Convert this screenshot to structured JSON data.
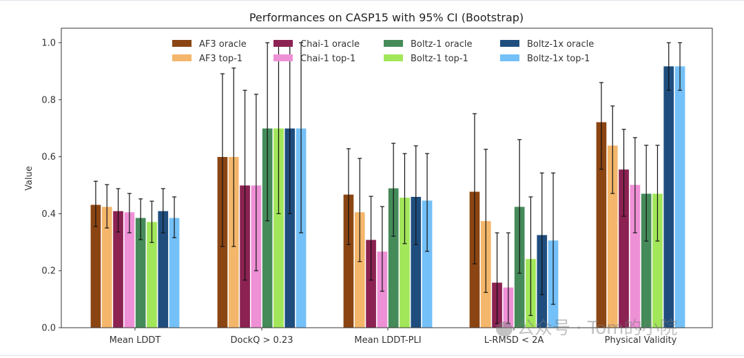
{
  "watermark": "公众号 · Tom的小院",
  "chart_data": {
    "type": "bar",
    "title": "Performances on CASP15 with 95% CI (Bootstrap)",
    "xlabel": "",
    "ylabel": "Value",
    "ylim": [
      0,
      1.05
    ],
    "yticks": [
      "0.0",
      "0.2",
      "0.4",
      "0.6",
      "0.8",
      "1.0"
    ],
    "grid": false,
    "legend_position": "top-center",
    "categories": [
      "Mean LDDT",
      "DockQ > 0.23",
      "Mean LDDT-PLI",
      "L-RMSD < 2A",
      "Physical Validity"
    ],
    "series": [
      {
        "name": "AF3 oracle",
        "color": "#8b4513",
        "values": [
          0.432,
          0.6,
          0.468,
          0.478,
          0.722
        ],
        "ci_low": [
          0.355,
          0.285,
          0.292,
          0.224,
          0.556
        ],
        "ci_high": [
          0.514,
          0.891,
          0.628,
          0.751,
          0.86
        ]
      },
      {
        "name": "AF3 top-1",
        "color": "#f4b66a",
        "values": [
          0.425,
          0.6,
          0.406,
          0.375,
          0.64
        ],
        "ci_low": [
          0.35,
          0.285,
          0.232,
          0.124,
          0.471
        ],
        "ci_high": [
          0.502,
          0.911,
          0.594,
          0.626,
          0.778
        ]
      },
      {
        "name": "Chai-1 oracle",
        "color": "#8b2252",
        "values": [
          0.41,
          0.5,
          0.309,
          0.159,
          0.556
        ],
        "ci_low": [
          0.336,
          0.167,
          0.167,
          0.015,
          0.391
        ],
        "ci_high": [
          0.488,
          0.833,
          0.461,
          0.333,
          0.696
        ]
      },
      {
        "name": "Chai-1 top-1",
        "color": "#ee90d6",
        "values": [
          0.406,
          0.5,
          0.268,
          0.142,
          0.502
        ],
        "ci_low": [
          0.333,
          0.2,
          0.128,
          0.015,
          0.333
        ],
        "ci_high": [
          0.471,
          0.819,
          0.425,
          0.333,
          0.667
        ]
      },
      {
        "name": "Boltz-1 oracle",
        "color": "#458b5a",
        "values": [
          0.386,
          0.7,
          0.49,
          0.425,
          0.471
        ],
        "ci_low": [
          0.309,
          0.375,
          0.321,
          0.191,
          0.304
        ],
        "ci_high": [
          0.452,
          1.0,
          0.647,
          0.66,
          0.64
        ]
      },
      {
        "name": "Boltz-1 top-1",
        "color": "#a2e65a",
        "values": [
          0.372,
          0.7,
          0.457,
          0.242,
          0.471
        ],
        "ci_low": [
          0.299,
          0.4,
          0.295,
          0.043,
          0.304
        ],
        "ci_high": [
          0.444,
          1.0,
          0.611,
          0.459,
          0.64
        ]
      },
      {
        "name": "Boltz-1x oracle",
        "color": "#1f4e7e",
        "values": [
          0.41,
          0.7,
          0.46,
          0.326,
          0.918
        ],
        "ci_low": [
          0.333,
          0.4,
          0.292,
          0.116,
          0.833
        ],
        "ci_high": [
          0.488,
          1.0,
          0.638,
          0.543,
          1.0
        ]
      },
      {
        "name": "Boltz-1x top-1",
        "color": "#74c0f8",
        "values": [
          0.386,
          0.7,
          0.447,
          0.307,
          0.918
        ],
        "ci_low": [
          0.316,
          0.333,
          0.268,
          0.082,
          0.833
        ],
        "ci_high": [
          0.459,
          1.0,
          0.611,
          0.543,
          1.0
        ]
      }
    ]
  }
}
